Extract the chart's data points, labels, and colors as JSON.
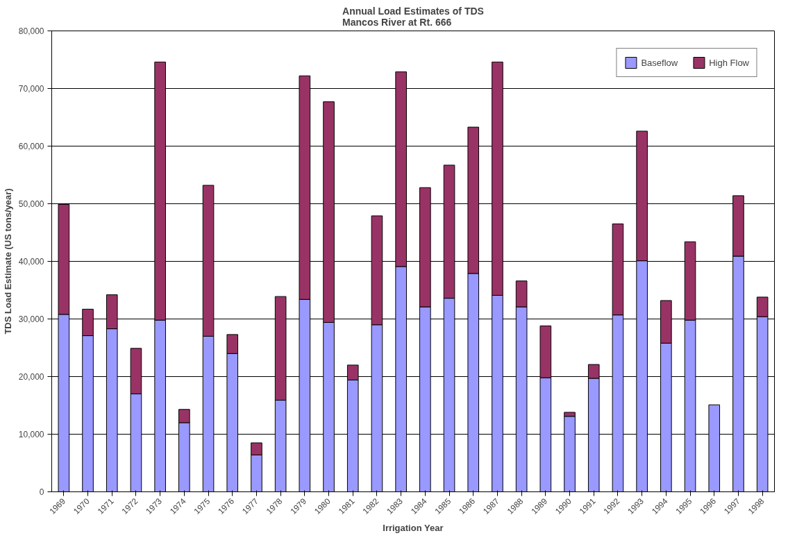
{
  "chart_data": {
    "type": "bar",
    "stacked": true,
    "title": "Annual Load Estimates of TDS\nMancos River at Rt. 666",
    "xlabel": "Irrigation Year",
    "ylabel": "TDS Load Estimate (US tons/year)",
    "categories": [
      "1969",
      "1970",
      "1971",
      "1972",
      "1973",
      "1974",
      "1975",
      "1976",
      "1977",
      "1978",
      "1979",
      "1980",
      "1981",
      "1982",
      "1983",
      "1984",
      "1985",
      "1986",
      "1987",
      "1988",
      "1989",
      "1990",
      "1991",
      "1992",
      "1993",
      "1994",
      "1995",
      "1996",
      "1997",
      "1998"
    ],
    "series": [
      {
        "name": "Baseflow",
        "color": "#9999ff",
        "values": [
          30800,
          27100,
          28300,
          17000,
          29800,
          12000,
          27000,
          24000,
          6400,
          15900,
          33400,
          29400,
          19400,
          29000,
          39100,
          32100,
          33600,
          37900,
          34100,
          32100,
          19800,
          13100,
          19700,
          30700,
          40100,
          25800,
          29800,
          15100,
          40900,
          30400
        ]
      },
      {
        "name": "High Flow",
        "color": "#993366",
        "values": [
          19100,
          4600,
          5900,
          7900,
          44800,
          2300,
          26200,
          3300,
          2100,
          18000,
          38800,
          38300,
          2600,
          18900,
          33800,
          20700,
          23100,
          25400,
          40500,
          4500,
          9000,
          700,
          2400,
          15800,
          22500,
          7400,
          13600,
          null,
          10500,
          3400
        ]
      }
    ],
    "ylim": [
      0,
      80000
    ],
    "yticks": [
      {
        "value": 0,
        "label": "0"
      },
      {
        "value": 10000,
        "label": "10,000"
      },
      {
        "value": 20000,
        "label": "20,000"
      },
      {
        "value": 30000,
        "label": "30,000"
      },
      {
        "value": 40000,
        "label": "40,000"
      },
      {
        "value": 50000,
        "label": "50,000"
      },
      {
        "value": 60000,
        "label": "60,000"
      },
      {
        "value": 70000,
        "label": "70,000"
      },
      {
        "value": 80000,
        "label": "80,000"
      }
    ],
    "grid": "y",
    "legend": "top right"
  }
}
